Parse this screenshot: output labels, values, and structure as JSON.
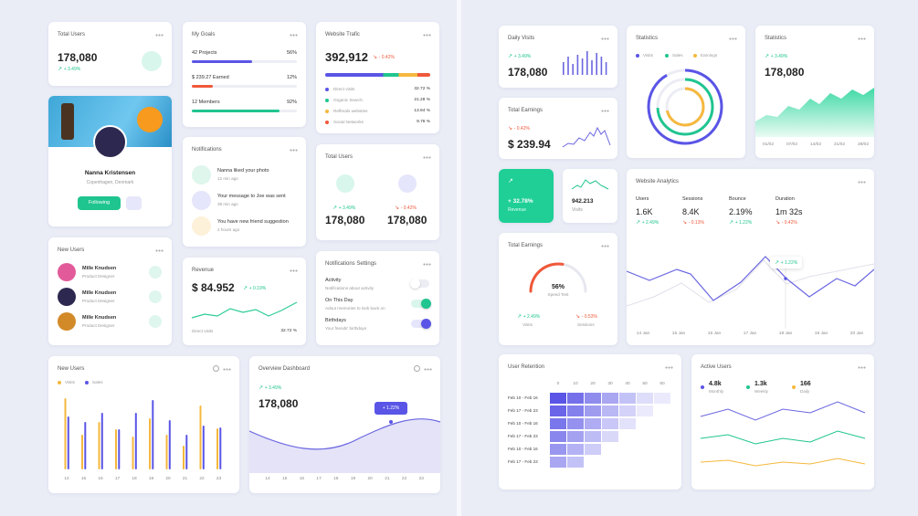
{
  "left": {
    "total_users": {
      "title": "Total Users",
      "value": "178,080",
      "change": "+ 3.49%"
    },
    "profile": {
      "name": "Nanna Kristensen",
      "location": "Copenhagen, Denmark",
      "button": "Following"
    },
    "new_users_list": {
      "title": "New Users",
      "users": [
        {
          "name": "Mille Knudsen",
          "role": "Product Designer"
        },
        {
          "name": "Mille Knudsen",
          "role": "Product Designer"
        },
        {
          "name": "Mille Knudsen",
          "role": "Product Designer"
        }
      ]
    },
    "goals": {
      "title": "My Goals",
      "items": [
        {
          "label": "42 Projects",
          "percent": "56%"
        },
        {
          "label": "$ 239.27 Earned",
          "percent": "12%"
        },
        {
          "label": "12 Members",
          "percent": "92%"
        }
      ]
    },
    "notifications": {
      "title": "Notifications",
      "items": [
        {
          "text": "Nanna liked your photo",
          "time": "12 min ago"
        },
        {
          "text": "Your message to Joe was sent",
          "time": "39 min ago"
        },
        {
          "text": "You have new friend suggestion",
          "time": "2 hours ago"
        }
      ]
    },
    "revenue": {
      "title": "Revenue",
      "value": "$ 84.952",
      "change": "+ 0.19%",
      "footer_label": "Direct visits",
      "footer_value": "32.72 %"
    },
    "traffic": {
      "title": "Website Trafic",
      "value": "392,912",
      "change": "- 0.42%",
      "sources": [
        {
          "name": "Direct visits",
          "percent": "32.72 %"
        },
        {
          "name": "Organic Search",
          "percent": "21.28 %"
        },
        {
          "name": "Refferals websites",
          "percent": "13.94 %"
        },
        {
          "name": "Social Networks",
          "percent": "9.76 %"
        }
      ]
    },
    "total_users_2": {
      "title": "Total Users",
      "items": [
        {
          "change": "+ 3.49%",
          "value": "178,080"
        },
        {
          "change": "- 0.42%",
          "value": "178,080"
        }
      ]
    },
    "notification_settings": {
      "title": "Notifications Settings",
      "items": [
        {
          "label": "Activity",
          "description": "Notifications about activity"
        },
        {
          "label": "On This Day",
          "description": "Adout memories to look back on"
        },
        {
          "label": "Birthdays",
          "description": "Your friends' birthdays"
        }
      ]
    },
    "new_users_chart": {
      "title": "New Users",
      "legend": [
        "Visits",
        "Sales"
      ],
      "x_labels": [
        "14",
        "15",
        "16",
        "17",
        "18",
        "19",
        "20",
        "21",
        "22",
        "23"
      ]
    },
    "overview": {
      "title": "Overview Dashboard",
      "change": "+ 3.49%",
      "value": "178,080",
      "tooltip": "+ 1.22%",
      "x_labels": [
        "14",
        "15",
        "16",
        "17",
        "18",
        "19",
        "20",
        "21",
        "22",
        "23"
      ]
    }
  },
  "right": {
    "daily_visits": {
      "title": "Daily Visits",
      "change": "+ 3.49%",
      "value": "178,080"
    },
    "total_earnings": {
      "title": "Total Earnings",
      "change": "- 0.42%",
      "value": "$ 239.94"
    },
    "revenue_tile": {
      "value": "+ 32.78%",
      "label": "Revenue"
    },
    "visits_tile": {
      "value": "942.213",
      "label": "Visits"
    },
    "speed": {
      "title": "Total Earnings",
      "value": "56%",
      "label": "Speed Test",
      "items": [
        {
          "change": "+ 2.49%",
          "label": "Visits"
        },
        {
          "change": "- 0.53%",
          "label": "Sessions"
        }
      ]
    },
    "statistics_rings": {
      "title": "Statistics",
      "legend": [
        "Visits",
        "Sales",
        "Earnings"
      ]
    },
    "statistics_area": {
      "title": "Statistics",
      "change": "+ 3.49%",
      "value": "178,080",
      "x_labels": [
        "01/02",
        "07/02",
        "14/02",
        "21/02",
        "28/02"
      ]
    },
    "analytics": {
      "title": "Website Analytics",
      "metrics": [
        {
          "label": "Users",
          "value": "1.6K",
          "change": "+ 2.49%"
        },
        {
          "label": "Sessions",
          "value": "8.4K",
          "change": "- 0.13%"
        },
        {
          "label": "Bounce",
          "value": "2.19%",
          "change": "+ 1.22%"
        },
        {
          "label": "Duration",
          "value": "1m 32s",
          "change": "- 0.42%"
        }
      ],
      "tooltip": "+ 1.22%",
      "x_labels": [
        "14 Jan",
        "15 Jan",
        "16 Jan",
        "17 Jan",
        "18 Jan",
        "19 Jan",
        "20 Jan"
      ]
    },
    "retention": {
      "title": "User Retention",
      "columns": [
        "0",
        "10",
        "20",
        "30",
        "40",
        "50",
        "60"
      ],
      "rows": [
        "Feb 10 - Feb 16",
        "Feb 17 - Feb 23",
        "Feb 10 - Feb 16",
        "Feb 17 - Feb 23",
        "Feb 10 - Feb 16",
        "Feb 17 - Feb 23"
      ]
    },
    "active_users": {
      "title": "Active Users",
      "stats": [
        {
          "value": "4.8k",
          "label": "Monthly"
        },
        {
          "value": "1.3k",
          "label": "Weekly"
        },
        {
          "value": "166",
          "label": "Daily"
        }
      ]
    }
  }
}
